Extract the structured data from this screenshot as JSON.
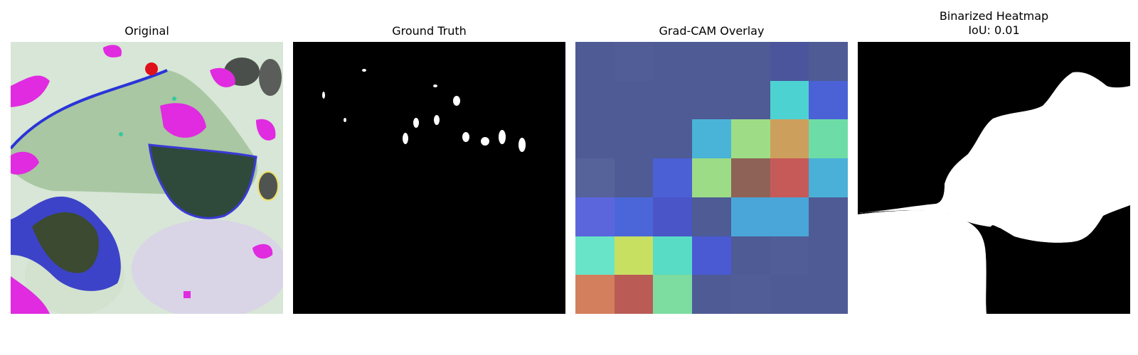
{
  "panels": {
    "original": {
      "title": "Original"
    },
    "ground_truth": {
      "title": "Ground Truth"
    },
    "gradcam": {
      "title": "Grad-CAM Overlay",
      "grid_colors": [
        [
          "#4e5b95",
          "#505d97",
          "#4e5b95",
          "#4e5b95",
          "#4e5b95",
          "#4a559c",
          "#4e5b95"
        ],
        [
          "#4e5b95",
          "#4e5b95",
          "#4e5b95",
          "#4e5b95",
          "#4e5b95",
          "#4dd2d2",
          "#4a62d6"
        ],
        [
          "#4e5b95",
          "#4e5b95",
          "#4e5b95",
          "#4ab4d8",
          "#9edd85",
          "#cd9f5d",
          "#6edca6"
        ],
        [
          "#56629a",
          "#4e5b95",
          "#4a60d4",
          "#9cdc86",
          "#8f6257",
          "#c65a58",
          "#4ab0d8"
        ],
        [
          "#5b66dd",
          "#4b66d9",
          "#4a55c8",
          "#4e5b95",
          "#4aa6d8",
          "#4aa6d8",
          "#4e5b95"
        ],
        [
          "#68e4c8",
          "#c8e062",
          "#58dcc6",
          "#4a5ad2",
          "#4e5b95",
          "#505d97",
          "#4e5b95"
        ],
        [
          "#d37f5e",
          "#ba5c55",
          "#7ddca0",
          "#4e5b95",
          "#505d97",
          "#4e5b95",
          "#4e5b95"
        ]
      ]
    },
    "binarized": {
      "title_line1": "Binarized Heatmap",
      "title_line2": "IoU: 0.01"
    }
  }
}
